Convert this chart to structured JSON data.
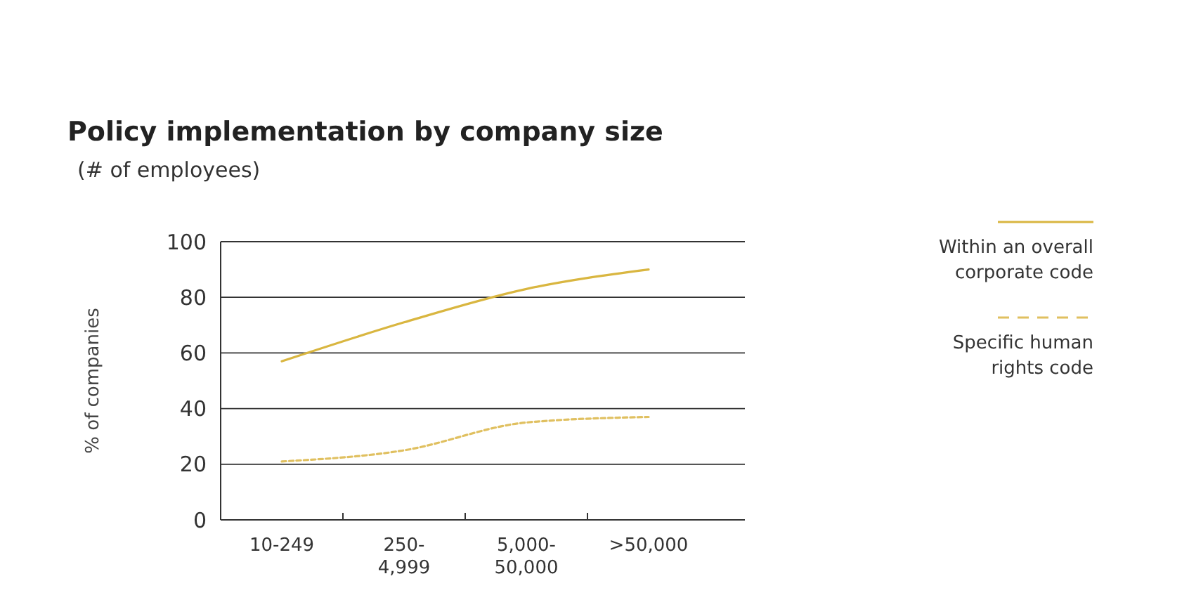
{
  "chart_data": {
    "type": "line",
    "title": "Policy implementation by company size",
    "subtitle": "(# of employees)",
    "ylabel": "% of companies",
    "categories": [
      "10-249",
      "250-4,999",
      "5,000-50,000",
      ">50,000"
    ],
    "series": [
      {
        "name": "Within an overall corporate code",
        "color": "#d9b640",
        "values": [
          57,
          71,
          83,
          90
        ],
        "line_style": "solid"
      },
      {
        "name": "Specific human rights code",
        "color": "#e0c060",
        "values": [
          21,
          25,
          35,
          37
        ],
        "line_style": "dashed"
      }
    ],
    "ylim": [
      0,
      100
    ],
    "yticks": [
      0,
      20,
      40,
      60,
      80,
      100
    ],
    "grid": "y",
    "legend": "right"
  }
}
